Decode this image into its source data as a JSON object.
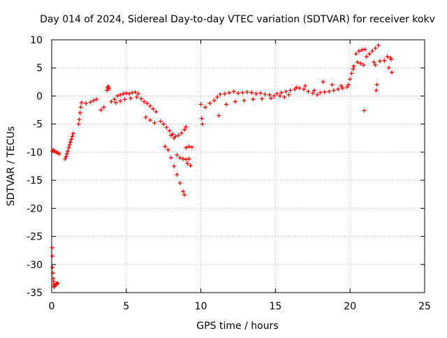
{
  "chart_data": {
    "type": "scatter",
    "title": "Day 014 of 2024, Sidereal Day-to-day VTEC variation (SDTVAR) for receiver kokv",
    "xlabel": "GPS time / hours",
    "ylabel": "SDTVAR / TECUs",
    "xlim": [
      0,
      25
    ],
    "ylim": [
      -35,
      10
    ],
    "x_ticks": [
      0,
      5,
      10,
      15,
      20,
      25
    ],
    "x_tick_labels": [
      "0",
      "5",
      "10",
      "15",
      "20",
      "25"
    ],
    "y_ticks": [
      -35,
      -30,
      -25,
      -20,
      -15,
      -10,
      -5,
      0,
      5,
      10
    ],
    "y_tick_labels": [
      "-35",
      "-30",
      "-25",
      "-20",
      "-15",
      "-10",
      "-5",
      "0",
      "5",
      "10"
    ],
    "grid": true,
    "marker": "+",
    "color": "#ff0000",
    "series": [
      {
        "name": "SDTVAR",
        "x": [
          0.02,
          0.04,
          0.06,
          0.08,
          0.1,
          0.12,
          0.14,
          0.16,
          0.2,
          0.26,
          0.3,
          0.36,
          0.4,
          0.05,
          0.12,
          0.2,
          0.3,
          0.4,
          0.5,
          0.9,
          0.96,
          1.02,
          1.08,
          1.14,
          1.2,
          1.26,
          1.32,
          1.38,
          1.44,
          1.8,
          1.85,
          1.9,
          1.95,
          2.0,
          2.3,
          2.6,
          2.8,
          3.0,
          3.3,
          3.5,
          3.7,
          3.75,
          3.8,
          3.85,
          4.0,
          4.2,
          4.4,
          4.6,
          4.8,
          5.0,
          5.2,
          5.4,
          5.6,
          5.8,
          6.0,
          4.3,
          4.6,
          4.9,
          5.3,
          5.7,
          6.2,
          6.4,
          6.6,
          6.8,
          7.0,
          6.3,
          6.6,
          6.9,
          7.3,
          7.5,
          7.7,
          7.9,
          8.1,
          8.3,
          8.5,
          8.7,
          8.9,
          9.0,
          7.6,
          7.8,
          8.0,
          8.2,
          8.4,
          8.6,
          8.8,
          8.9,
          8.0,
          8.2,
          8.4,
          8.6,
          8.8,
          9.0,
          9.2,
          9.0,
          9.2,
          9.4,
          9.1,
          9.3,
          10.0,
          10.05,
          10.1,
          10.3,
          10.6,
          10.9,
          11.1,
          11.3,
          11.6,
          11.9,
          12.2,
          12.5,
          12.8,
          13.1,
          13.4,
          13.7,
          14.0,
          14.3,
          14.6,
          14.9,
          11.2,
          11.7,
          12.3,
          12.9,
          13.5,
          14.1,
          14.7,
          15.1,
          15.4,
          15.7,
          16.0,
          16.3,
          16.6,
          16.9,
          17.2,
          17.5,
          17.8,
          15.3,
          15.6,
          15.9,
          16.4,
          17.0,
          17.6,
          18.0,
          18.3,
          18.6,
          18.9,
          19.2,
          19.5,
          19.8,
          18.2,
          18.8,
          19.4,
          19.9,
          20.0,
          20.1,
          20.2,
          20.25,
          20.4,
          20.6,
          20.8,
          21.0,
          20.5,
          20.7,
          20.9,
          20.95,
          21.1,
          21.3,
          21.5,
          21.7,
          21.9,
          21.6,
          21.7,
          21.8,
          21.75,
          22.0,
          22.3,
          22.6,
          22.8,
          22.5,
          22.7,
          22.75
        ],
        "y": [
          -27.0,
          -28.5,
          -30.5,
          -31.5,
          -32.5,
          -33.0,
          -33.5,
          -34.0,
          -33.8,
          -33.6,
          -33.5,
          -33.3,
          -33.4,
          -9.8,
          -9.6,
          -9.9,
          -10.0,
          -10.1,
          -10.3,
          -11.2,
          -10.8,
          -10.3,
          -9.8,
          -9.2,
          -8.7,
          -8.2,
          -7.7,
          -7.2,
          -6.7,
          -5.0,
          -4.2,
          -3.0,
          -2.0,
          -1.2,
          -1.3,
          -1.1,
          -0.8,
          -0.6,
          -2.5,
          -2.0,
          1.0,
          1.5,
          1.7,
          1.3,
          -1.0,
          -0.6,
          0.0,
          0.2,
          0.4,
          0.5,
          0.4,
          0.6,
          0.7,
          0.4,
          -0.5,
          -1.2,
          -0.9,
          -0.6,
          -0.4,
          -0.2,
          -1.0,
          -1.3,
          -1.8,
          -2.3,
          -2.8,
          -3.8,
          -4.3,
          -4.8,
          -4.5,
          -5.0,
          -5.6,
          -6.2,
          -6.8,
          -7.2,
          -7.0,
          -6.6,
          -6.0,
          -5.5,
          -9.0,
          -9.6,
          -11.0,
          -12.5,
          -14.0,
          -15.5,
          -17.0,
          -17.6,
          -7.0,
          -7.5,
          -10.5,
          -11.0,
          -11.2,
          -11.3,
          -11.2,
          -9.2,
          -9.0,
          -9.1,
          -12.0,
          -12.4,
          -1.5,
          -4.0,
          -5.0,
          -2.0,
          -1.3,
          -0.8,
          -0.2,
          0.3,
          0.4,
          0.6,
          0.8,
          0.5,
          0.6,
          0.7,
          0.6,
          0.4,
          0.5,
          0.3,
          0.2,
          0.0,
          -3.5,
          -1.5,
          -1.0,
          -0.8,
          -0.6,
          -0.5,
          -0.4,
          0.4,
          0.6,
          0.8,
          1.0,
          1.2,
          1.4,
          1.2,
          0.8,
          0.5,
          0.2,
          0.0,
          -0.2,
          0.2,
          1.5,
          1.8,
          1.0,
          0.6,
          0.7,
          0.8,
          1.0,
          1.2,
          1.4,
          1.6,
          2.5,
          2.0,
          1.8,
          2.0,
          3.0,
          4.0,
          4.8,
          5.3,
          7.5,
          8.0,
          8.2,
          8.3,
          6.0,
          5.8,
          5.5,
          -2.6,
          7.0,
          7.5,
          8.0,
          8.5,
          9.0,
          6.0,
          5.5,
          2.0,
          1.0,
          6.2,
          6.3,
          5.0,
          4.2,
          7.0,
          6.8,
          6.5
        ]
      }
    ]
  }
}
